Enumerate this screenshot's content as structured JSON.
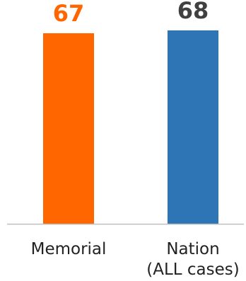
{
  "chart_data": {
    "type": "bar",
    "categories": [
      {
        "line1": "Memorial",
        "line2": ""
      },
      {
        "line1": "Nation",
        "line2": "(ALL cases)"
      }
    ],
    "values": [
      67,
      68
    ],
    "value_labels": [
      "67",
      "68"
    ],
    "bar_colors": [
      "#ff6600",
      "#2e75b6"
    ],
    "value_label_colors": [
      "#ff6600",
      "#404040"
    ],
    "axis_color": "#bfbfbf",
    "ylim": [
      0,
      70
    ],
    "grid": false,
    "legend": "none",
    "title": "",
    "xlabel": "",
    "ylabel": ""
  }
}
